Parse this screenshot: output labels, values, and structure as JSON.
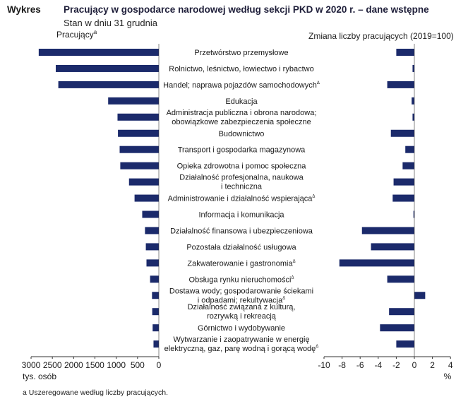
{
  "header": {
    "label": "Wykres",
    "title": "Pracujący w gospodarce narodowej według sekcji PKD w 2020 r. – dane wstępne",
    "subtitle": "Stan w dniu 31 grudnia"
  },
  "footnote": "a Uszeregowane według liczby pracujących.",
  "colors": {
    "bar": "#1b2a6b",
    "axis": "#333333",
    "text": "#1a1a1a"
  },
  "chart_data": [
    {
      "type": "bar",
      "orientation": "horizontal",
      "title": "Pracujący",
      "title_superscript": "a",
      "xlabel": "tys. osób",
      "xlim": [
        0,
        3000
      ],
      "reversed": true,
      "ticks": [
        "3000",
        "2500",
        "2000",
        "1500",
        "1000",
        "500",
        "0"
      ],
      "grid": false,
      "categories": [
        {
          "lines": [
            "Przetwórstwo przemysłowe"
          ],
          "sup": ""
        },
        {
          "lines": [
            "Rolnictwo, leśnictwo, łowiectwo i rybactwo"
          ],
          "sup": ""
        },
        {
          "lines": [
            "Handel; naprawa pojazdów samochodowych"
          ],
          "sup": "Δ"
        },
        {
          "lines": [
            "Edukacja"
          ],
          "sup": ""
        },
        {
          "lines": [
            "Administracja publiczna i obrona narodowa;",
            "obowiązkowe zabezpieczenia społeczne"
          ],
          "sup": ""
        },
        {
          "lines": [
            "Budownictwo"
          ],
          "sup": ""
        },
        {
          "lines": [
            "Transport i gospodarka magazynowa"
          ],
          "sup": ""
        },
        {
          "lines": [
            "Opieka zdrowotna i pomoc społeczna"
          ],
          "sup": ""
        },
        {
          "lines": [
            "Działalność profesjonalna, naukowa",
            "i techniczna"
          ],
          "sup": ""
        },
        {
          "lines": [
            "Administrowanie i działalność wspierająca"
          ],
          "sup": "Δ"
        },
        {
          "lines": [
            "Informacja i komunikacja"
          ],
          "sup": ""
        },
        {
          "lines": [
            "Działalność finansowa i ubezpieczeniowa"
          ],
          "sup": ""
        },
        {
          "lines": [
            "Pozostała działalność usługowa"
          ],
          "sup": ""
        },
        {
          "lines": [
            "Zakwaterowanie i gastronomia"
          ],
          "sup": "Δ"
        },
        {
          "lines": [
            "Obsługa rynku nieruchomości"
          ],
          "sup": "Δ"
        },
        {
          "lines": [
            "Dostawa wody; gospodarowanie ściekami",
            "i odpadami; rekultywacja"
          ],
          "sup": "Δ"
        },
        {
          "lines": [
            "Działalność związana z kulturą,",
            "rozrywką i rekreacją"
          ],
          "sup": ""
        },
        {
          "lines": [
            "Górnictwo i wydobywanie"
          ],
          "sup": ""
        },
        {
          "lines": [
            "Wytwarzanie i zaopatrywanie w energię",
            "elektryczną, gaz, parę wodną i gorącą wodę"
          ],
          "sup": "Δ"
        }
      ],
      "values": [
        2820,
        2420,
        2360,
        1190,
        970,
        960,
        920,
        905,
        700,
        570,
        390,
        325,
        305,
        290,
        205,
        160,
        155,
        145,
        125
      ]
    },
    {
      "type": "bar",
      "orientation": "horizontal",
      "title": "Zmiana liczby pracujących (2019=100)",
      "xlabel": "%",
      "xlim": [
        -10,
        4
      ],
      "ticks": [
        "-10",
        "-8",
        "-6",
        "-4",
        "-2",
        "0",
        "2",
        "4"
      ],
      "grid": false,
      "values": [
        -2.0,
        -0.2,
        -3.0,
        -0.3,
        -0.2,
        -2.6,
        -1.0,
        -1.3,
        -2.3,
        -2.4,
        -0.1,
        -5.8,
        -4.8,
        -8.3,
        -3.0,
        1.2,
        -2.8,
        -3.8,
        -2.0
      ]
    }
  ]
}
